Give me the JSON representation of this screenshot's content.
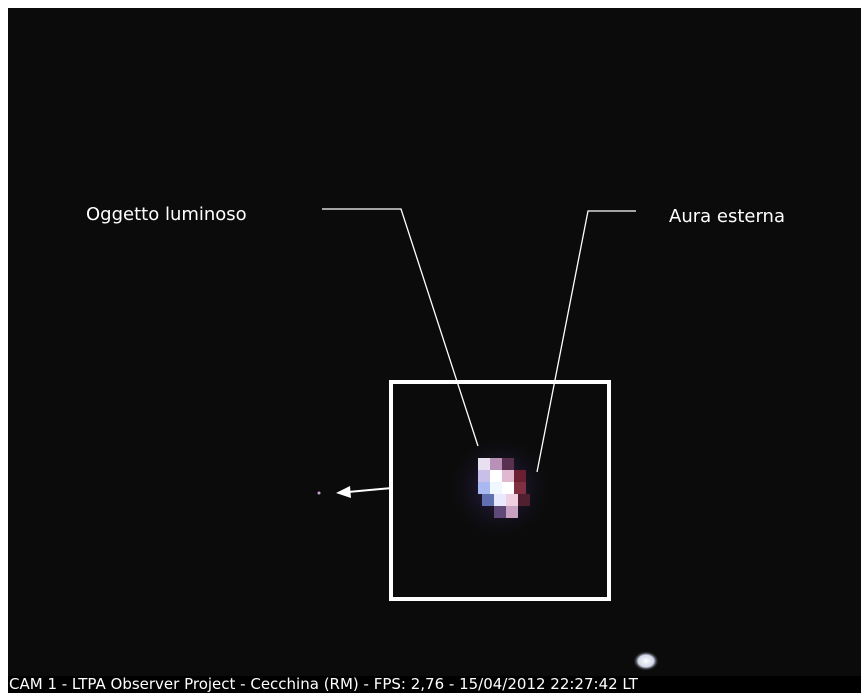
{
  "annotations": {
    "object_label": "Oggetto luminoso",
    "aura_label": "Aura esterna"
  },
  "caption": "CAM 1 - LTPA Observer Project - Cecchina (RM) - FPS: 2,76 - 15/04/2012 22:27:42 LT"
}
